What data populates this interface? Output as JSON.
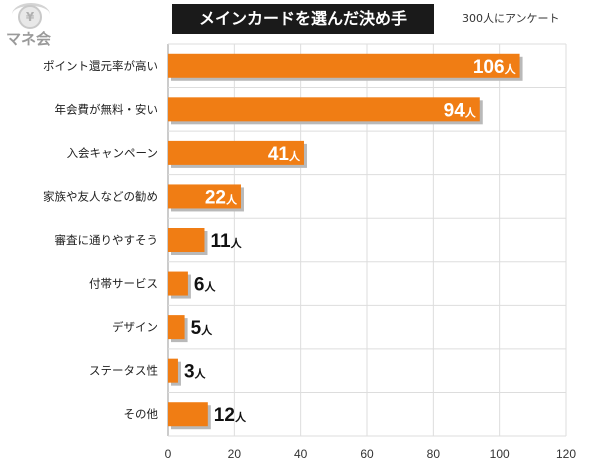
{
  "logo": {
    "text": "マネ会",
    "symbol": "¥"
  },
  "title": "メインカードを選んだ決め手",
  "subtitle": "300人にアンケート",
  "chart_data": {
    "type": "bar",
    "orientation": "horizontal",
    "categories": [
      "ポイント還元率が高い",
      "年会費が無料・安い",
      "入会キャンペーン",
      "家族や友人などの勧め",
      "審査に通りやすそう",
      "付帯サービス",
      "デザイン",
      "ステータス性",
      "その他"
    ],
    "values": [
      106,
      94,
      41,
      22,
      11,
      6,
      5,
      3,
      12
    ],
    "value_suffix": "人",
    "xlim": [
      0,
      120
    ],
    "xticks": [
      0,
      20,
      40,
      60,
      80,
      100,
      120
    ],
    "grid": true,
    "bar_color": "#f07d14",
    "bar_shadow_color": "#b9b9b9",
    "label_inside_color": "#ffffff",
    "label_outside_color": "#111111",
    "grid_color": "#dddddd"
  }
}
